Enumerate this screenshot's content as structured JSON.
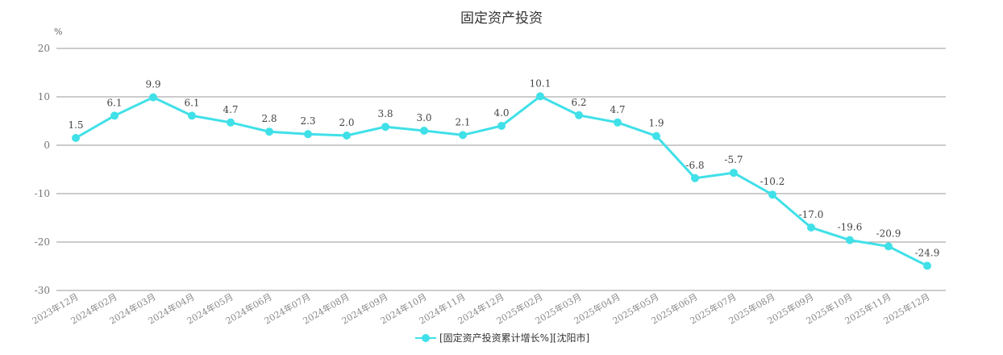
{
  "chart_data": {
    "type": "line",
    "title": "固定资产投资",
    "ylabel": "%",
    "xlabel": "",
    "ylim": [
      -30,
      20
    ],
    "yticks": [
      20,
      10,
      0,
      -10,
      -20,
      -30
    ],
    "grid": true,
    "legend_position": "bottom",
    "color": "#40e0e8",
    "categories": [
      "2023年12月",
      "2024年02月",
      "2024年03月",
      "2024年04月",
      "2024年05月",
      "2024年06月",
      "2024年07月",
      "2024年08月",
      "2024年09月",
      "2024年10月",
      "2024年11月",
      "2024年12月",
      "2025年02月",
      "2025年03月",
      "2025年04月",
      "2025年05月",
      "2025年06月",
      "2025年07月",
      "2025年08月",
      "2025年09月",
      "2025年10月",
      "2025年11月",
      "2025年12月"
    ],
    "series": [
      {
        "name": "[固定资产投资累计增长%][沈阳市]",
        "values": [
          1.5,
          6.1,
          9.9,
          6.1,
          4.7,
          2.8,
          2.3,
          2.0,
          3.8,
          3.0,
          2.1,
          4.0,
          10.1,
          6.2,
          4.7,
          1.9,
          -6.8,
          -5.7,
          -10.2,
          -17.0,
          -19.6,
          -20.9,
          -24.9
        ]
      }
    ]
  }
}
